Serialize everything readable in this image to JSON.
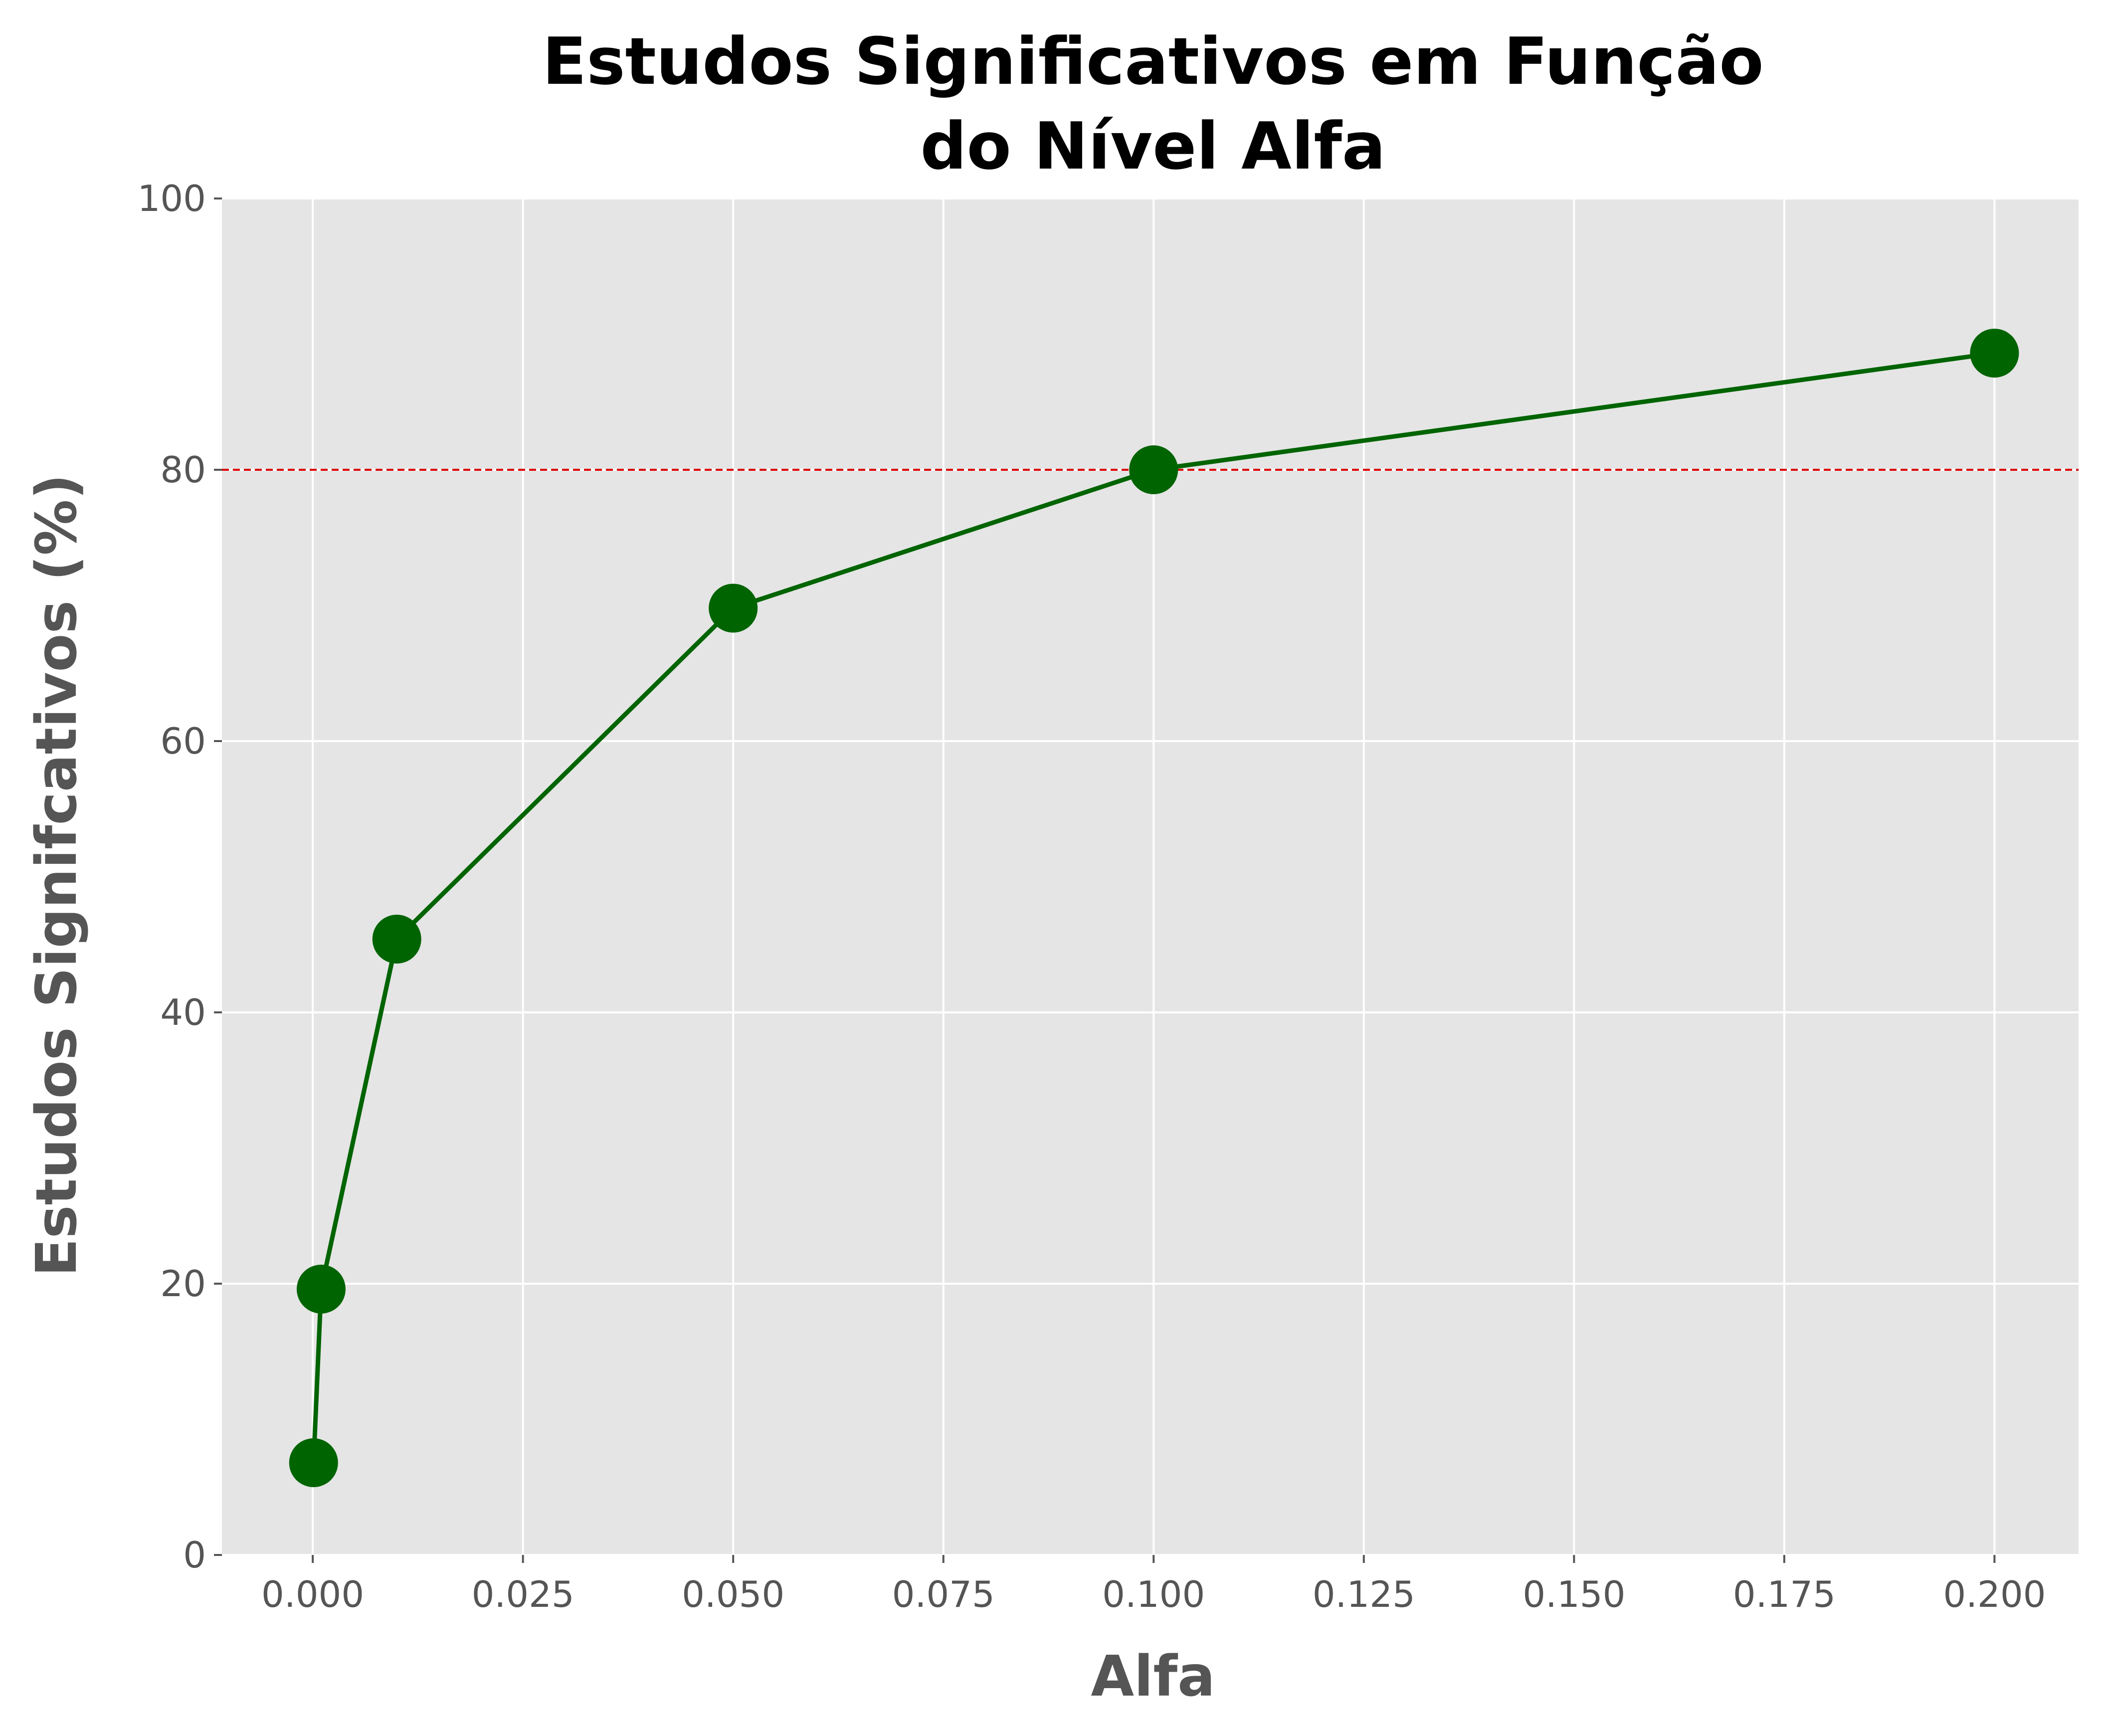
{
  "chart_data": {
    "type": "line",
    "title_lines": [
      "Estudos Significativos em Função",
      "do Nível Alfa"
    ],
    "xlabel": "Alfa",
    "ylabel": "Estudos Signifcativos (%)",
    "xlim": [
      -0.0108,
      0.21
    ],
    "ylim": [
      0,
      100
    ],
    "x_ticks": [
      0.0,
      0.025,
      0.05,
      0.075,
      0.1,
      0.125,
      0.15,
      0.175,
      0.2
    ],
    "x_tick_labels": [
      "0.000",
      "0.025",
      "0.050",
      "0.075",
      "0.100",
      "0.125",
      "0.150",
      "0.175",
      "0.200"
    ],
    "y_ticks": [
      0,
      20,
      40,
      60,
      80,
      100
    ],
    "y_tick_labels": [
      "0",
      "20",
      "40",
      "60",
      "80",
      "100"
    ],
    "grid": true,
    "background": "#e5e5e5",
    "series": [
      {
        "color": "#006400",
        "marker": "circle",
        "x": [
          0.0001,
          0.001,
          0.01,
          0.05,
          0.1,
          0.2
        ],
        "y": [
          6.8,
          19.6,
          45.4,
          69.8,
          80.0,
          88.6
        ]
      }
    ],
    "reference_line": {
      "orientation": "horizontal",
      "y": 80,
      "color": "#dd0000",
      "style": "dashed"
    }
  }
}
